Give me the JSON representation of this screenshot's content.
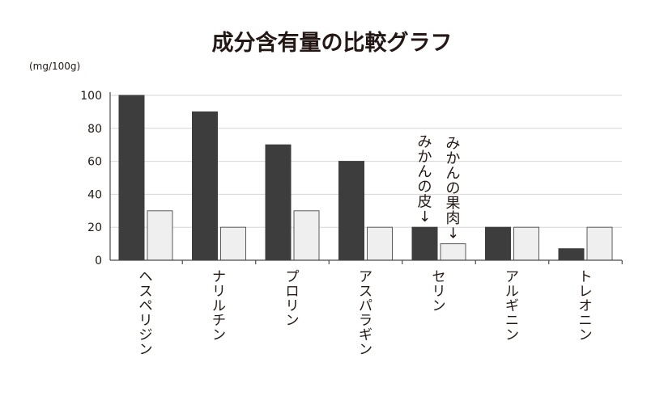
{
  "chart_data": {
    "type": "bar",
    "title": "成分含有量の比較グラフ",
    "unit_label": "(mg/100g)",
    "ylim": [
      0,
      100
    ],
    "yticks": [
      0,
      20,
      40,
      60,
      80,
      100
    ],
    "grid": true,
    "categories": [
      "ヘスペリジン",
      "ナリルチン",
      "プロリン",
      "アスパラギン",
      "セリン",
      "アルギニン",
      "トレオニン"
    ],
    "series": [
      {
        "values": [
          100,
          90,
          70,
          60,
          20,
          20,
          7
        ]
      },
      {
        "values": [
          30,
          20,
          30,
          20,
          10,
          20,
          20
        ]
      }
    ],
    "annotations": [
      {
        "text": "みかんの皮↓",
        "category_index": 4,
        "series_index": 0
      },
      {
        "text": "みかんの果肉↓",
        "category_index": 4,
        "series_index": 1
      }
    ],
    "colors": {
      "series_a": "#3d3d3d",
      "series_b": "#efefef",
      "grid": "#d6d6d6",
      "text": "#231815"
    }
  }
}
